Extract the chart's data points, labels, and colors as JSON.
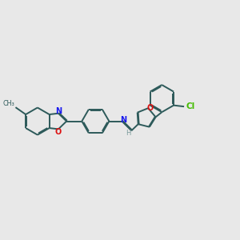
{
  "bg_color": "#e8e8e8",
  "bond_color": "#2d5a5a",
  "N_color": "#1a1aee",
  "O_color": "#dd1111",
  "Cl_color": "#44bb00",
  "H_color": "#7a9a9a",
  "lw": 1.4,
  "doff": 0.038,
  "figsize": [
    3.0,
    3.0
  ],
  "dpi": 100,
  "xlim": [
    0.0,
    9.5
  ],
  "ylim": [
    2.5,
    7.5
  ]
}
